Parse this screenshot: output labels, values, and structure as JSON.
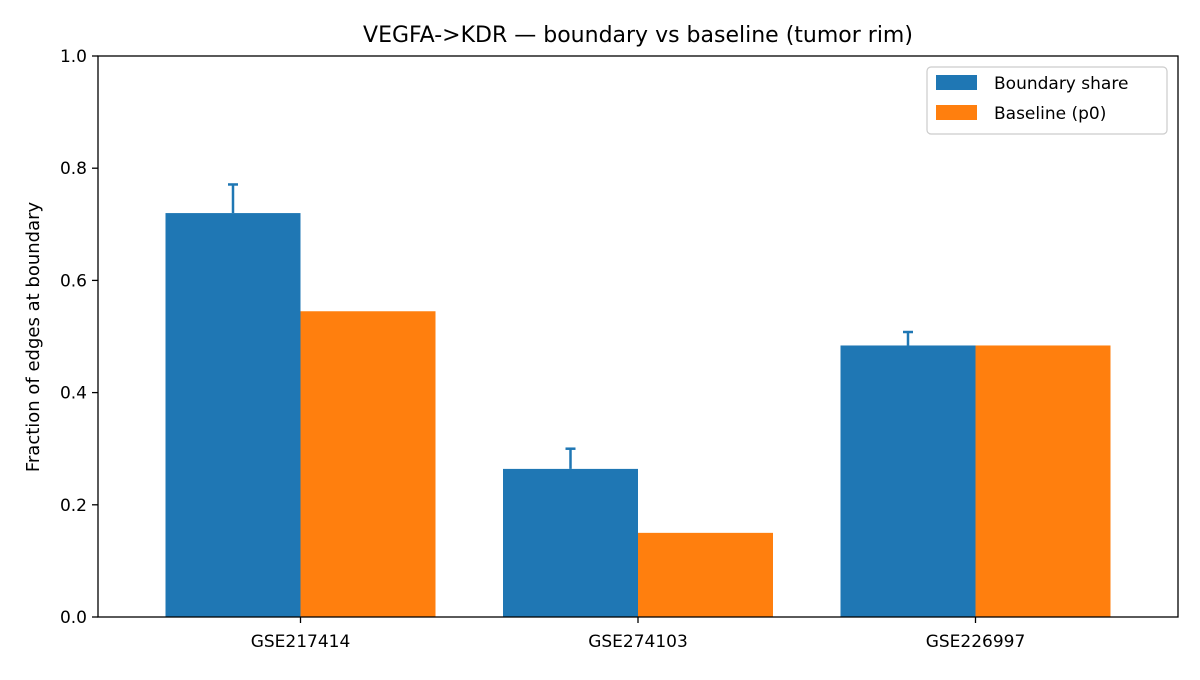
{
  "chart_data": {
    "type": "bar",
    "title": "VEGFA->KDR — boundary vs baseline (tumor rim)",
    "xlabel": "",
    "ylabel": "Fraction of edges at boundary",
    "ylim": [
      0,
      1.0
    ],
    "yticks": [
      "0.0",
      "0.2",
      "0.4",
      "0.6",
      "0.8",
      "1.0"
    ],
    "categories": [
      "GSE217414",
      "GSE274103",
      "GSE226997"
    ],
    "series": [
      {
        "name": "Boundary share",
        "color": "#1f77b4",
        "values": [
          0.72,
          0.264,
          0.484
        ],
        "error_upper": [
          0.771,
          0.3,
          0.508
        ]
      },
      {
        "name": "Baseline (p0)",
        "color": "#ff7f0e",
        "values": [
          0.545,
          0.15,
          0.484
        ]
      }
    ],
    "legend": "top-right",
    "grid": false
  }
}
